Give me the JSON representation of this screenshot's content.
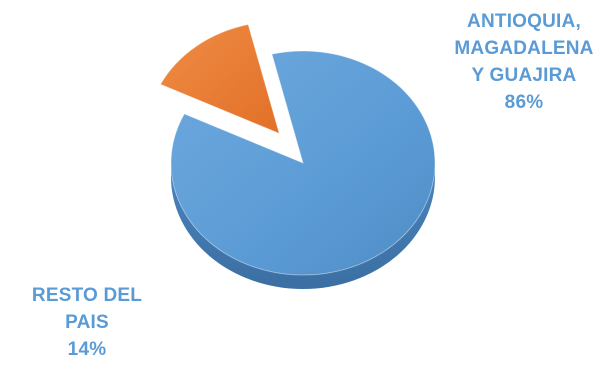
{
  "chart_data": {
    "type": "pie",
    "exploded": true,
    "style": "3d",
    "slices": [
      {
        "label_lines": [
          "ANTIOQUIA,",
          "MAGADALENA",
          "Y GUAJIRA"
        ],
        "value_label": "86%",
        "value": 86,
        "color": "#5b9bd5",
        "label_color": "#5b9bd5"
      },
      {
        "label_lines": [
          "RESTO DEL",
          "PAIS"
        ],
        "value_label": "14%",
        "value": 14,
        "color": "#ed7d31",
        "label_color": "#5b9bd5"
      }
    ]
  }
}
